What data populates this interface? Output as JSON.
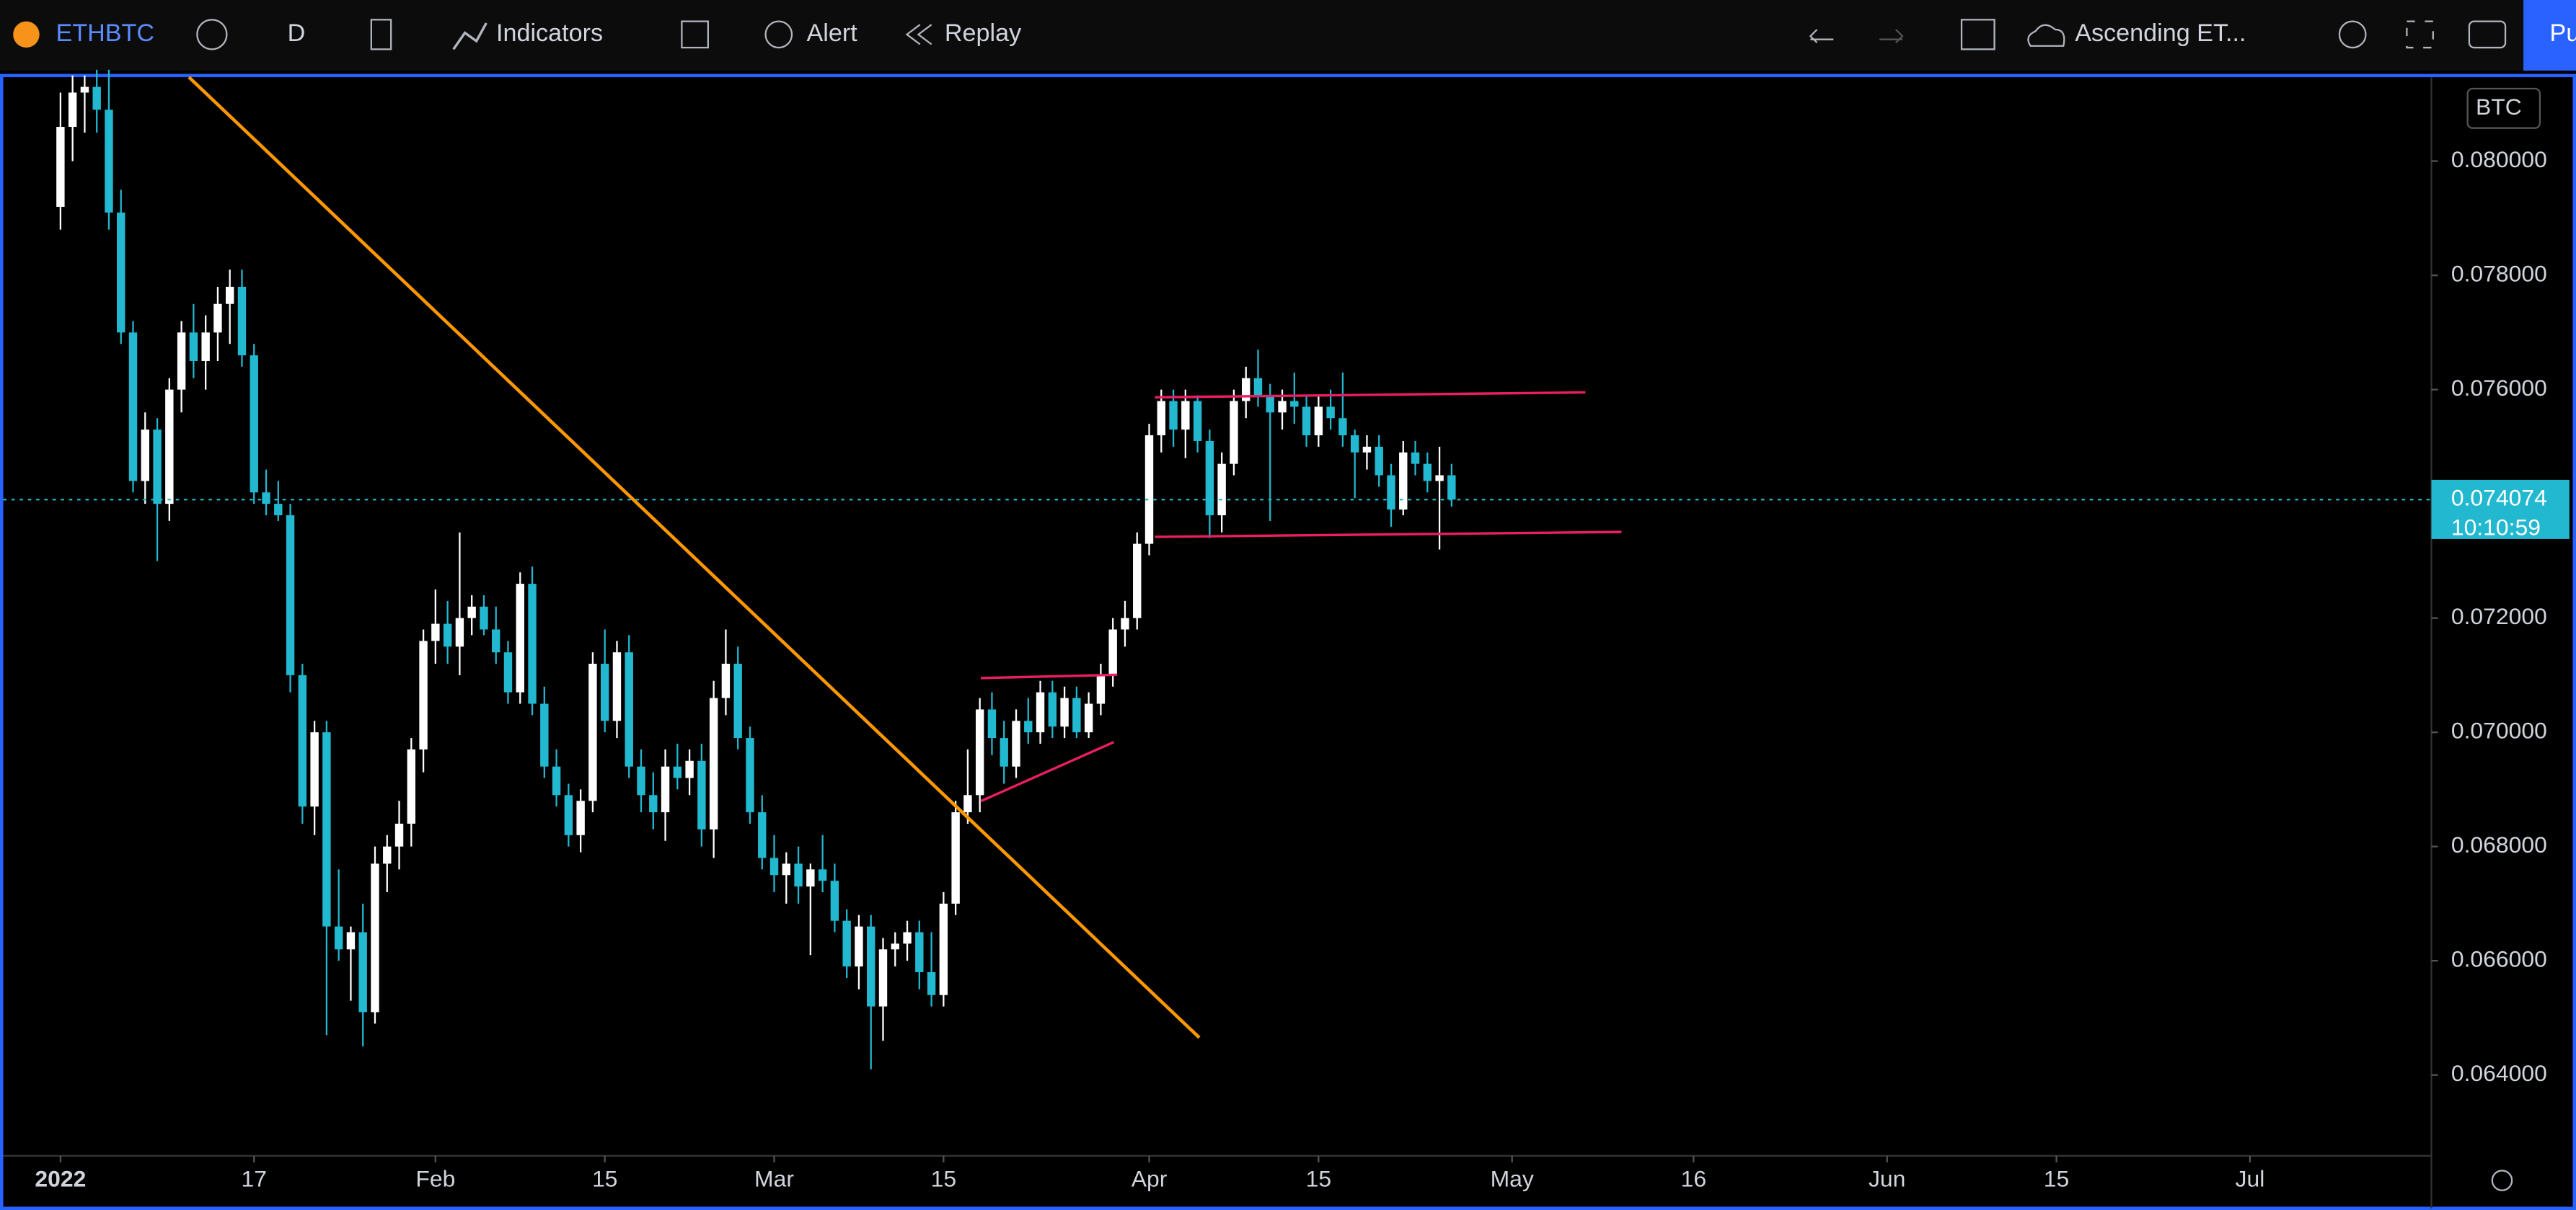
{
  "toolbar": {
    "symbol": "ETHBTC",
    "interval": "D",
    "indicators": "Indicators",
    "alert": "Alert",
    "replay": "Replay",
    "layout": "Ascending ET...",
    "publish": "Pu"
  },
  "chart_data": {
    "type": "candlestick",
    "currency": "BTC",
    "up_color": "#ffffff",
    "down_color": "#22b8cf",
    "ylim": [
      0.0627,
      0.08147
    ],
    "yticks": [
      {
        "value": 0.064,
        "label": "0.064000"
      },
      {
        "value": 0.066,
        "label": "0.066000"
      },
      {
        "value": 0.068,
        "label": "0.068000"
      },
      {
        "value": 0.07,
        "label": "0.070000"
      },
      {
        "value": 0.072,
        "label": "0.072000"
      },
      {
        "value": 0.074,
        "label": "0.074000"
      },
      {
        "value": 0.076,
        "label": "0.076000"
      },
      {
        "value": 0.078,
        "label": "0.078000"
      },
      {
        "value": 0.08,
        "label": "0.080000"
      }
    ],
    "xlim": [
      "2021-12-27",
      "2022-07-16"
    ],
    "xticks": [
      {
        "value": "2022-01-01",
        "label": "2022"
      },
      {
        "value": "2022-01-17",
        "label": "17"
      },
      {
        "value": "2022-02-01",
        "label": "Feb"
      },
      {
        "value": "2022-02-15",
        "label": "15"
      },
      {
        "value": "2022-03-01",
        "label": "Mar"
      },
      {
        "value": "2022-03-15",
        "label": "15"
      },
      {
        "value": "2022-04-01",
        "label": "Apr"
      },
      {
        "value": "2022-04-15",
        "label": "15"
      },
      {
        "value": "2022-05-01",
        "label": "May"
      },
      {
        "value": "2022-05-16",
        "label": "16"
      },
      {
        "value": "2022-06-01",
        "label": "Jun"
      },
      {
        "value": "2022-06-15",
        "label": "15"
      },
      {
        "value": "2022-07-01",
        "label": "Jul"
      }
    ],
    "price_tag": {
      "value": 0.074074,
      "label": "0.074074"
    },
    "countdown": "10:10:59",
    "x": [
      "2022-01-01",
      "2022-01-02",
      "2022-01-03",
      "2022-01-04",
      "2022-01-05",
      "2022-01-06",
      "2022-01-07",
      "2022-01-08",
      "2022-01-09",
      "2022-01-10",
      "2022-01-11",
      "2022-01-12",
      "2022-01-13",
      "2022-01-14",
      "2022-01-15",
      "2022-01-16",
      "2022-01-17",
      "2022-01-18",
      "2022-01-19",
      "2022-01-20",
      "2022-01-21",
      "2022-01-22",
      "2022-01-23",
      "2022-01-24",
      "2022-01-25",
      "2022-01-26",
      "2022-01-27",
      "2022-01-28",
      "2022-01-29",
      "2022-01-30",
      "2022-01-31",
      "2022-02-01",
      "2022-02-02",
      "2022-02-03",
      "2022-02-04",
      "2022-02-05",
      "2022-02-06",
      "2022-02-07",
      "2022-02-08",
      "2022-02-09",
      "2022-02-10",
      "2022-02-11",
      "2022-02-12",
      "2022-02-13",
      "2022-02-14",
      "2022-02-15",
      "2022-02-16",
      "2022-02-17",
      "2022-02-18",
      "2022-02-19",
      "2022-02-20",
      "2022-02-21",
      "2022-02-22",
      "2022-02-23",
      "2022-02-24",
      "2022-02-25",
      "2022-02-26",
      "2022-02-27",
      "2022-02-28",
      "2022-03-01",
      "2022-03-02",
      "2022-03-03",
      "2022-03-04",
      "2022-03-05",
      "2022-03-06",
      "2022-03-07",
      "2022-03-08",
      "2022-03-09",
      "2022-03-10",
      "2022-03-11",
      "2022-03-12",
      "2022-03-13",
      "2022-03-14",
      "2022-03-15",
      "2022-03-16",
      "2022-03-17",
      "2022-03-18",
      "2022-03-19",
      "2022-03-20",
      "2022-03-21",
      "2022-03-22",
      "2022-03-23",
      "2022-03-24",
      "2022-03-25",
      "2022-03-26",
      "2022-03-27",
      "2022-03-28",
      "2022-03-29",
      "2022-03-30",
      "2022-03-31",
      "2022-04-01",
      "2022-04-02",
      "2022-04-03",
      "2022-04-04",
      "2022-04-05",
      "2022-04-06",
      "2022-04-07",
      "2022-04-08",
      "2022-04-09",
      "2022-04-10",
      "2022-04-11",
      "2022-04-12",
      "2022-04-13",
      "2022-04-14",
      "2022-04-15",
      "2022-04-16",
      "2022-04-17",
      "2022-04-18",
      "2022-04-19",
      "2022-04-20",
      "2022-04-21",
      "2022-04-22",
      "2022-04-23",
      "2022-04-24",
      "2022-04-25",
      "2022-04-26"
    ],
    "ohlc": [
      [
        0.0792,
        0.0812,
        0.0788,
        0.0806
      ],
      [
        0.0806,
        0.0815,
        0.08,
        0.0812
      ],
      [
        0.0812,
        0.0815,
        0.0805,
        0.0813
      ],
      [
        0.0813,
        0.0816,
        0.0805,
        0.0809
      ],
      [
        0.0809,
        0.0816,
        0.0788,
        0.0791
      ],
      [
        0.0791,
        0.0795,
        0.0768,
        0.077
      ],
      [
        0.077,
        0.0772,
        0.0742,
        0.0744
      ],
      [
        0.0744,
        0.0756,
        0.074,
        0.0753
      ],
      [
        0.0753,
        0.0755,
        0.073,
        0.074
      ],
      [
        0.074,
        0.0762,
        0.0737,
        0.076
      ],
      [
        0.076,
        0.0772,
        0.0756,
        0.077
      ],
      [
        0.077,
        0.0775,
        0.0762,
        0.0765
      ],
      [
        0.0765,
        0.0773,
        0.076,
        0.077
      ],
      [
        0.077,
        0.0778,
        0.0765,
        0.0775
      ],
      [
        0.0775,
        0.0781,
        0.0768,
        0.0778
      ],
      [
        0.0778,
        0.0781,
        0.0764,
        0.0766
      ],
      [
        0.0766,
        0.0768,
        0.074,
        0.0742
      ],
      [
        0.0742,
        0.0746,
        0.0738,
        0.074
      ],
      [
        0.074,
        0.0744,
        0.0737,
        0.0738
      ],
      [
        0.0738,
        0.074,
        0.0707,
        0.071
      ],
      [
        0.071,
        0.0712,
        0.0684,
        0.0687
      ],
      [
        0.0687,
        0.0702,
        0.0682,
        0.07
      ],
      [
        0.07,
        0.0702,
        0.0647,
        0.0666
      ],
      [
        0.0666,
        0.0676,
        0.066,
        0.0662
      ],
      [
        0.0662,
        0.0666,
        0.0653,
        0.0665
      ],
      [
        0.0665,
        0.067,
        0.0645,
        0.0651
      ],
      [
        0.0651,
        0.068,
        0.0649,
        0.0677
      ],
      [
        0.0677,
        0.0682,
        0.0672,
        0.068
      ],
      [
        0.068,
        0.0688,
        0.0676,
        0.0684
      ],
      [
        0.0684,
        0.0699,
        0.068,
        0.0697
      ],
      [
        0.0697,
        0.0718,
        0.0693,
        0.0716
      ],
      [
        0.0716,
        0.0725,
        0.0712,
        0.0719
      ],
      [
        0.0719,
        0.0723,
        0.0712,
        0.0715
      ],
      [
        0.0715,
        0.0735,
        0.071,
        0.072
      ],
      [
        0.072,
        0.0724,
        0.0717,
        0.0722
      ],
      [
        0.0722,
        0.0724,
        0.0717,
        0.0718
      ],
      [
        0.0718,
        0.0722,
        0.0712,
        0.0714
      ],
      [
        0.0714,
        0.0716,
        0.0705,
        0.0707
      ],
      [
        0.0707,
        0.0728,
        0.0705,
        0.0726
      ],
      [
        0.0726,
        0.0729,
        0.0703,
        0.0705
      ],
      [
        0.0705,
        0.0708,
        0.0692,
        0.0694
      ],
      [
        0.0694,
        0.0697,
        0.0687,
        0.0689
      ],
      [
        0.0689,
        0.0691,
        0.068,
        0.0682
      ],
      [
        0.0682,
        0.069,
        0.0679,
        0.0688
      ],
      [
        0.0688,
        0.0714,
        0.0686,
        0.0712
      ],
      [
        0.0712,
        0.0718,
        0.07,
        0.0702
      ],
      [
        0.0702,
        0.0716,
        0.0699,
        0.0714
      ],
      [
        0.0714,
        0.0717,
        0.0692,
        0.0694
      ],
      [
        0.0694,
        0.0697,
        0.0686,
        0.0689
      ],
      [
        0.0689,
        0.0693,
        0.0683,
        0.0686
      ],
      [
        0.0686,
        0.0697,
        0.0681,
        0.0694
      ],
      [
        0.0694,
        0.0698,
        0.069,
        0.0692
      ],
      [
        0.0692,
        0.0697,
        0.0689,
        0.0695
      ],
      [
        0.0695,
        0.0698,
        0.068,
        0.0683
      ],
      [
        0.0683,
        0.0709,
        0.0678,
        0.0706
      ],
      [
        0.0706,
        0.0718,
        0.0703,
        0.0712
      ],
      [
        0.0712,
        0.0715,
        0.0697,
        0.0699
      ],
      [
        0.0699,
        0.0701,
        0.0684,
        0.0686
      ],
      [
        0.0686,
        0.0689,
        0.0676,
        0.0678
      ],
      [
        0.0678,
        0.0682,
        0.0672,
        0.0675
      ],
      [
        0.0675,
        0.0679,
        0.067,
        0.0677
      ],
      [
        0.0677,
        0.068,
        0.067,
        0.0673
      ],
      [
        0.0673,
        0.0677,
        0.0661,
        0.0676
      ],
      [
        0.0676,
        0.0682,
        0.0672,
        0.0674
      ],
      [
        0.0674,
        0.0677,
        0.0665,
        0.0667
      ],
      [
        0.0667,
        0.0669,
        0.0657,
        0.0659
      ],
      [
        0.0659,
        0.0668,
        0.0655,
        0.0666
      ],
      [
        0.0666,
        0.0668,
        0.0641,
        0.0652
      ],
      [
        0.0652,
        0.0664,
        0.0646,
        0.0662
      ],
      [
        0.0662,
        0.0665,
        0.0659,
        0.0663
      ],
      [
        0.0663,
        0.0667,
        0.066,
        0.0665
      ],
      [
        0.0665,
        0.0667,
        0.0655,
        0.0658
      ],
      [
        0.0658,
        0.0665,
        0.0652,
        0.0654
      ],
      [
        0.0654,
        0.0672,
        0.0652,
        0.067
      ],
      [
        0.067,
        0.0688,
        0.0668,
        0.0686
      ],
      [
        0.0686,
        0.0697,
        0.0684,
        0.0689
      ],
      [
        0.0689,
        0.0706,
        0.0686,
        0.0704
      ],
      [
        0.0704,
        0.0707,
        0.0696,
        0.0699
      ],
      [
        0.0699,
        0.0702,
        0.0691,
        0.0694
      ],
      [
        0.0694,
        0.0704,
        0.0692,
        0.0702
      ],
      [
        0.0702,
        0.0706,
        0.0698,
        0.07
      ],
      [
        0.07,
        0.0709,
        0.0698,
        0.0707
      ],
      [
        0.0707,
        0.0709,
        0.0699,
        0.0701
      ],
      [
        0.0701,
        0.0708,
        0.0699,
        0.0706
      ],
      [
        0.0706,
        0.0708,
        0.0699,
        0.07
      ],
      [
        0.07,
        0.0707,
        0.0699,
        0.0705
      ],
      [
        0.0705,
        0.0712,
        0.0703,
        0.071
      ],
      [
        0.071,
        0.072,
        0.0708,
        0.0718
      ],
      [
        0.0718,
        0.0723,
        0.0715,
        0.072
      ],
      [
        0.072,
        0.0735,
        0.0718,
        0.0733
      ],
      [
        0.0733,
        0.0754,
        0.0731,
        0.0752
      ],
      [
        0.0752,
        0.076,
        0.0749,
        0.0758
      ],
      [
        0.0758,
        0.076,
        0.075,
        0.0753
      ],
      [
        0.0753,
        0.076,
        0.0748,
        0.0758
      ],
      [
        0.0758,
        0.0759,
        0.0749,
        0.0751
      ],
      [
        0.0751,
        0.0753,
        0.0734,
        0.0738
      ],
      [
        0.0738,
        0.0749,
        0.0735,
        0.0747
      ],
      [
        0.0747,
        0.076,
        0.0745,
        0.0758
      ],
      [
        0.0758,
        0.0764,
        0.0755,
        0.0762
      ],
      [
        0.0762,
        0.0767,
        0.0757,
        0.0759
      ],
      [
        0.0759,
        0.0761,
        0.0737,
        0.0756
      ],
      [
        0.0756,
        0.076,
        0.0753,
        0.0758
      ],
      [
        0.0758,
        0.0763,
        0.0754,
        0.0757
      ],
      [
        0.0757,
        0.0759,
        0.075,
        0.0752
      ],
      [
        0.0752,
        0.0759,
        0.075,
        0.0757
      ],
      [
        0.0757,
        0.076,
        0.0753,
        0.0755
      ],
      [
        0.0755,
        0.0763,
        0.075,
        0.0752
      ],
      [
        0.0752,
        0.0753,
        0.0741,
        0.0749
      ],
      [
        0.0749,
        0.0752,
        0.0746,
        0.075
      ],
      [
        0.075,
        0.0752,
        0.0743,
        0.0745
      ],
      [
        0.0745,
        0.0747,
        0.0736,
        0.0739
      ],
      [
        0.0739,
        0.0751,
        0.0738,
        0.0749
      ],
      [
        0.0749,
        0.0751,
        0.0745,
        0.0747
      ],
      [
        0.0747,
        0.0749,
        0.0742,
        0.0744
      ],
      [
        0.0744,
        0.075,
        0.0732,
        0.0745
      ],
      [
        0.0745,
        0.0747,
        0.07395,
        0.074074
      ]
    ]
  }
}
